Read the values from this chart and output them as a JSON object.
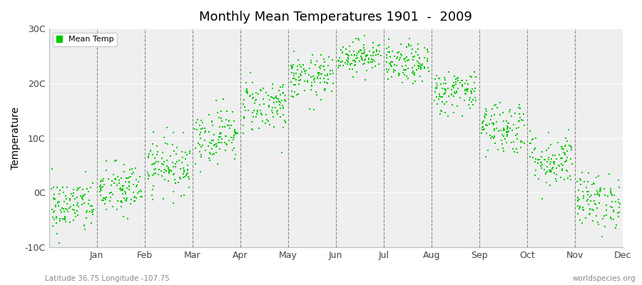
{
  "title": "Monthly Mean Temperatures 1901  -  2009",
  "ylabel": "Temperature",
  "subtitle_left": "Latitude 36.75 Longitude -107.75",
  "subtitle_right": "worldspecies.org",
  "legend_label": "Mean Temp",
  "dot_color": "#00cc00",
  "background_color": "#efefef",
  "figure_background": "#ffffff",
  "ylim": [
    -10,
    30
  ],
  "yticks": [
    -10,
    0,
    10,
    20,
    30
  ],
  "ytick_labels": [
    "-10C",
    "0C",
    "10C",
    "20C",
    "30C"
  ],
  "months": [
    "Jan",
    "Feb",
    "Mar",
    "Apr",
    "May",
    "Jun",
    "Jul",
    "Aug",
    "Sep",
    "Oct",
    "Nov",
    "Dec"
  ],
  "xtick_positions": [
    1.0,
    2.0,
    3.0,
    4.0,
    5.0,
    6.0,
    7.0,
    8.0,
    9.0,
    10.0,
    11.0,
    12.0
  ],
  "month_boundaries": [
    1.0,
    2.0,
    3.0,
    4.0,
    5.0,
    6.0,
    7.0,
    8.0,
    9.0,
    10.0,
    11.0
  ],
  "xlim": [
    0,
    12
  ],
  "n_years": 109,
  "mean_temps": [
    -2.5,
    0.5,
    5.0,
    10.5,
    16.0,
    21.0,
    25.0,
    23.5,
    18.5,
    12.0,
    6.0,
    -1.5
  ],
  "temp_spread": [
    2.5,
    2.5,
    2.5,
    2.5,
    2.5,
    2.0,
    1.5,
    1.8,
    2.0,
    2.5,
    2.5,
    2.5
  ],
  "seed": 42
}
